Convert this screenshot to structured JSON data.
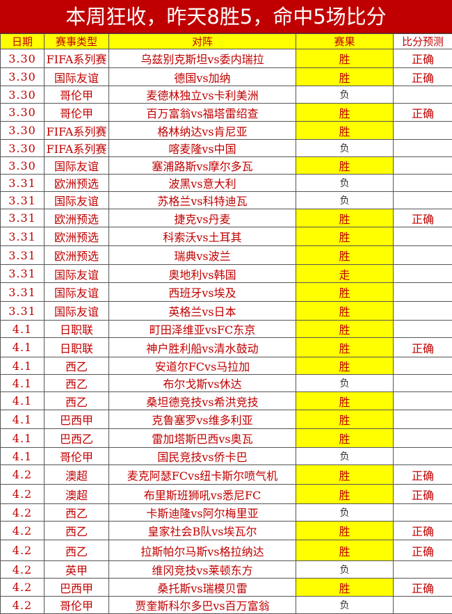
{
  "title": "本周狂收，昨天8胜5，命中5场比分",
  "colors": {
    "title_bg": "#c00000",
    "highlight": "#ffff00",
    "text": "#c00000"
  },
  "headers": [
    "日期",
    "赛事类型",
    "对阵",
    "赛果",
    "比分预测"
  ],
  "rows": [
    {
      "date": "3.30",
      "league": "FIFA系列赛",
      "match": "乌兹别克斯坦vs委内瑞拉",
      "result": "胜",
      "prediction": "正确"
    },
    {
      "date": "3.30",
      "league": "国际友谊",
      "match": "德国vs加纳",
      "result": "胜",
      "prediction": "正确"
    },
    {
      "date": "3.30",
      "league": "哥伦甲",
      "match": "麦德林独立vs卡利美洲",
      "result": "负",
      "prediction": ""
    },
    {
      "date": "3.30",
      "league": "哥伦甲",
      "match": "百万富翁vs福塔雷绍查",
      "result": "胜",
      "prediction": "正确"
    },
    {
      "date": "3.30",
      "league": "FIFA系列赛",
      "match": "格林纳达vs肯尼亚",
      "result": "胜",
      "prediction": ""
    },
    {
      "date": "3.30",
      "league": "FIFA系列赛",
      "match": "喀麦隆vs中国",
      "result": "负",
      "prediction": ""
    },
    {
      "date": "3.30",
      "league": "国际友谊",
      "match": "塞浦路斯vs摩尔多瓦",
      "result": "胜",
      "prediction": ""
    },
    {
      "date": "3.31",
      "league": "欧洲预选",
      "match": "波黑vs意大利",
      "result": "负",
      "prediction": ""
    },
    {
      "date": "3.31",
      "league": "国际友谊",
      "match": "苏格兰vs科特迪瓦",
      "result": "负",
      "prediction": ""
    },
    {
      "date": "3.31",
      "league": "欧洲预选",
      "match": "捷克vs丹麦",
      "result": "胜",
      "prediction": "正确"
    },
    {
      "date": "3.31",
      "league": "欧洲预选",
      "match": "科索沃vs土耳其",
      "result": "胜",
      "prediction": ""
    },
    {
      "date": "3.31",
      "league": "欧洲预选",
      "match": "瑞典vs波兰",
      "result": "胜",
      "prediction": ""
    },
    {
      "date": "3.31",
      "league": "国际友谊",
      "match": "奥地利vs韩国",
      "result": "走",
      "prediction": ""
    },
    {
      "date": "3.31",
      "league": "国际友谊",
      "match": "西班牙vs埃及",
      "result": "胜",
      "prediction": ""
    },
    {
      "date": "3.31",
      "league": "国际友谊",
      "match": "英格兰vs日本",
      "result": "胜",
      "prediction": ""
    },
    {
      "date": "4.1",
      "league": "日职联",
      "match": "町田泽维亚vsFC东京",
      "result": "胜",
      "prediction": ""
    },
    {
      "date": "4.1",
      "league": "日职联",
      "match": "神户胜利船vs清水鼓动",
      "result": "胜",
      "prediction": "正确"
    },
    {
      "date": "4.1",
      "league": "西乙",
      "match": "安道尔FCvs马拉加",
      "result": "胜",
      "prediction": ""
    },
    {
      "date": "4.1",
      "league": "西乙",
      "match": "布尔戈斯vs休达",
      "result": "负",
      "prediction": ""
    },
    {
      "date": "4.1",
      "league": "西乙",
      "match": "桑坦德竞技vs希洪竞技",
      "result": "胜",
      "prediction": ""
    },
    {
      "date": "4.1",
      "league": "巴西甲",
      "match": "克鲁塞罗vs维多利亚",
      "result": "胜",
      "prediction": ""
    },
    {
      "date": "4.1",
      "league": "巴西乙",
      "match": "雷加塔斯巴西vs奥瓦",
      "result": "胜",
      "prediction": ""
    },
    {
      "date": "4.1",
      "league": "哥伦甲",
      "match": "国民竞技vs侨卡巴",
      "result": "负",
      "prediction": ""
    },
    {
      "date": "4.2",
      "league": "澳超",
      "match": "麦克阿瑟FCvs纽卡斯尔喷气机",
      "result": "胜",
      "prediction": "正确"
    },
    {
      "date": "4.2",
      "league": "澳超",
      "match": "布里斯班狮吼vs悉尼FC",
      "result": "胜",
      "prediction": "正确"
    },
    {
      "date": "4.2",
      "league": "西乙",
      "match": "卡斯迪隆vs阿尔梅里亚",
      "result": "负",
      "prediction": ""
    },
    {
      "date": "4.2",
      "league": "西乙",
      "match": "皇家社会B队vs埃瓦尔",
      "result": "胜",
      "prediction": "正确"
    },
    {
      "date": "4.2",
      "league": "西乙",
      "match": "拉斯帕尔马斯vs格拉纳达",
      "result": "胜",
      "prediction": "正确"
    },
    {
      "date": "4.2",
      "league": "英甲",
      "match": "维冈竞技vs莱顿东方",
      "result": "负",
      "prediction": ""
    },
    {
      "date": "4.2",
      "league": "巴西甲",
      "match": "桑托斯vs瑞模贝雷",
      "result": "胜",
      "prediction": "正确"
    },
    {
      "date": "4.2",
      "league": "哥伦甲",
      "match": "贾奎斯科尔多巴vs百万富翁",
      "result": "负",
      "prediction": ""
    }
  ]
}
